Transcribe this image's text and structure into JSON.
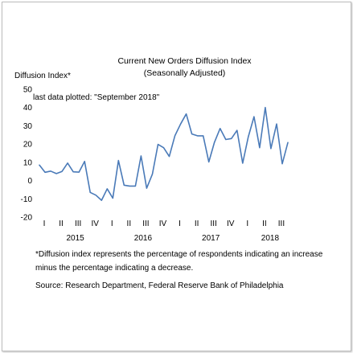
{
  "chart_data": {
    "type": "line",
    "title": "Current New Orders Diffusion Index",
    "subtitle": "(Seasonally Adjusted)",
    "ylabel": "Diffusion Index*",
    "annotation": "last data plotted: \"September 2018\"",
    "ylim": [
      -20,
      50
    ],
    "yticks": [
      -20,
      -10,
      0,
      10,
      20,
      30,
      40,
      50
    ],
    "quarter_labels": [
      "I",
      "II",
      "III",
      "IV",
      "I",
      "II",
      "III",
      "IV",
      "I",
      "II",
      "III",
      "IV",
      "I",
      "II",
      "III"
    ],
    "year_labels": [
      "2015",
      "2016",
      "2017",
      "2018"
    ],
    "x": [
      "2015-01",
      "2015-02",
      "2015-03",
      "2015-04",
      "2015-05",
      "2015-06",
      "2015-07",
      "2015-08",
      "2015-09",
      "2015-10",
      "2015-11",
      "2015-12",
      "2016-01",
      "2016-02",
      "2016-03",
      "2016-04",
      "2016-05",
      "2016-06",
      "2016-07",
      "2016-08",
      "2016-09",
      "2016-10",
      "2016-11",
      "2016-12",
      "2017-01",
      "2017-02",
      "2017-03",
      "2017-04",
      "2017-05",
      "2017-06",
      "2017-07",
      "2017-08",
      "2017-09",
      "2017-10",
      "2017-11",
      "2017-12",
      "2018-01",
      "2018-02",
      "2018-03",
      "2018-04",
      "2018-05",
      "2018-06",
      "2018-07",
      "2018-08",
      "2018-09"
    ],
    "series": [
      {
        "values": [
          8.5,
          4.5,
          5.2,
          3.8,
          5.0,
          9.6,
          4.8,
          4.6,
          10.5,
          -6.5,
          -8.0,
          -10.8,
          -4.5,
          -9.6,
          11.0,
          -2.5,
          -3.0,
          -3.0,
          13.5,
          -4.2,
          3.5,
          19.8,
          18.0,
          13.2,
          24.5,
          31.0,
          36.5,
          25.5,
          24.5,
          24.5,
          10.2,
          21.0,
          28.5,
          22.5,
          23.0,
          27.5,
          9.5,
          24.0,
          35.0,
          18.0,
          40.0,
          17.5,
          31.0,
          9.2,
          20.8
        ]
      }
    ],
    "grid": false,
    "line_color": "#4a7ab8"
  },
  "footnote": "*Diffusion index represents the percentage of respondents indicating an increase minus the percentage indicating a decrease.",
  "source": "Source: Research Department, Federal Reserve Bank of Philadelphia"
}
